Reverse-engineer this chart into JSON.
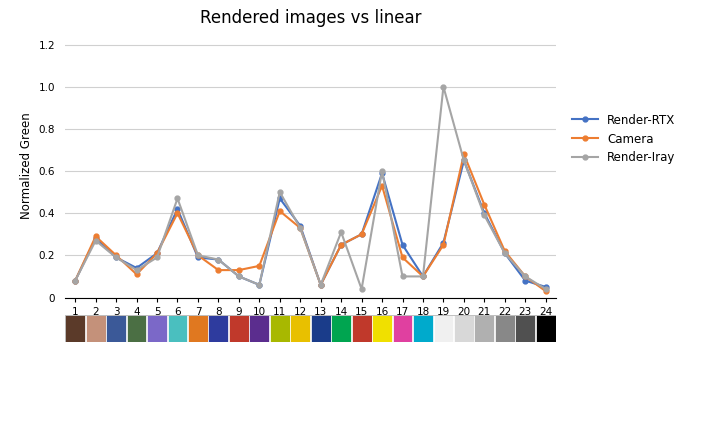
{
  "title": "Rendered images vs linear",
  "ylabel": "Normalized Green",
  "xlim": [
    0.5,
    24.5
  ],
  "ylim": [
    0,
    1.25
  ],
  "yticks": [
    0,
    0.2,
    0.4,
    0.6,
    0.8,
    1.0,
    1.2
  ],
  "xticks": [
    1,
    2,
    3,
    4,
    5,
    6,
    7,
    8,
    9,
    10,
    11,
    12,
    13,
    14,
    15,
    16,
    17,
    18,
    19,
    20,
    21,
    22,
    23,
    24
  ],
  "render_rtx": [
    0.08,
    0.28,
    0.19,
    0.14,
    0.21,
    0.42,
    0.19,
    0.18,
    0.1,
    0.06,
    0.47,
    0.34,
    0.06,
    0.25,
    0.3,
    0.59,
    0.25,
    0.1,
    0.26,
    0.65,
    0.4,
    0.21,
    0.08,
    0.05
  ],
  "camera": [
    0.08,
    0.29,
    0.2,
    0.11,
    0.21,
    0.4,
    0.2,
    0.13,
    0.13,
    0.15,
    0.41,
    0.33,
    0.06,
    0.25,
    0.3,
    0.53,
    0.19,
    0.1,
    0.25,
    0.68,
    0.44,
    0.22,
    0.1,
    0.03
  ],
  "render_iray": [
    0.08,
    0.27,
    0.19,
    0.13,
    0.19,
    0.47,
    0.2,
    0.18,
    0.1,
    0.06,
    0.5,
    0.33,
    0.06,
    0.31,
    0.04,
    0.6,
    0.1,
    0.1,
    1.0,
    0.65,
    0.39,
    0.21,
    0.1,
    0.04
  ],
  "rtx_color": "#4472C4",
  "camera_color": "#ED7D31",
  "iray_color": "#A5A5A5",
  "swatch_colors": [
    "#5B3A29",
    "#C4917A",
    "#3B5998",
    "#4B6F44",
    "#7B68C8",
    "#4ABFBF",
    "#E07820",
    "#2E3B9E",
    "#C0392B",
    "#5B2D8E",
    "#A8B800",
    "#E8C000",
    "#1A3C8A",
    "#00A550",
    "#C0392B",
    "#F0E000",
    "#E040A0",
    "#00AACC",
    "#F0F0F0",
    "#D8D8D8",
    "#B0B0B0",
    "#888888",
    "#505050",
    "#000000"
  ],
  "legend_labels": [
    "Render-RTX",
    "Camera",
    "Render-Iray"
  ],
  "bg_color": "#FFFFFF",
  "grid_color": "#D0D0D0"
}
